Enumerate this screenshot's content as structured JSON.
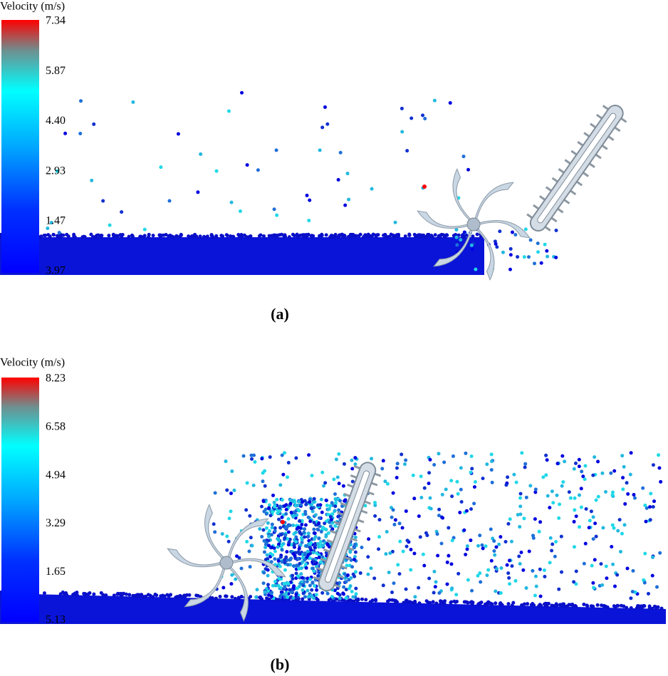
{
  "panels": [
    {
      "legend_title": "Velocity (m/s)",
      "legend_labels": [
        "7.34",
        "5.87",
        "4.40",
        "2.93",
        "1.47",
        "3.97"
      ],
      "caption": "(a)"
    },
    {
      "legend_title": "Velocity (m/s)",
      "legend_labels": [
        "8.23",
        "6.58",
        "4.94",
        "3.29",
        "1.65",
        "5.13"
      ],
      "caption": "(b)"
    }
  ]
}
